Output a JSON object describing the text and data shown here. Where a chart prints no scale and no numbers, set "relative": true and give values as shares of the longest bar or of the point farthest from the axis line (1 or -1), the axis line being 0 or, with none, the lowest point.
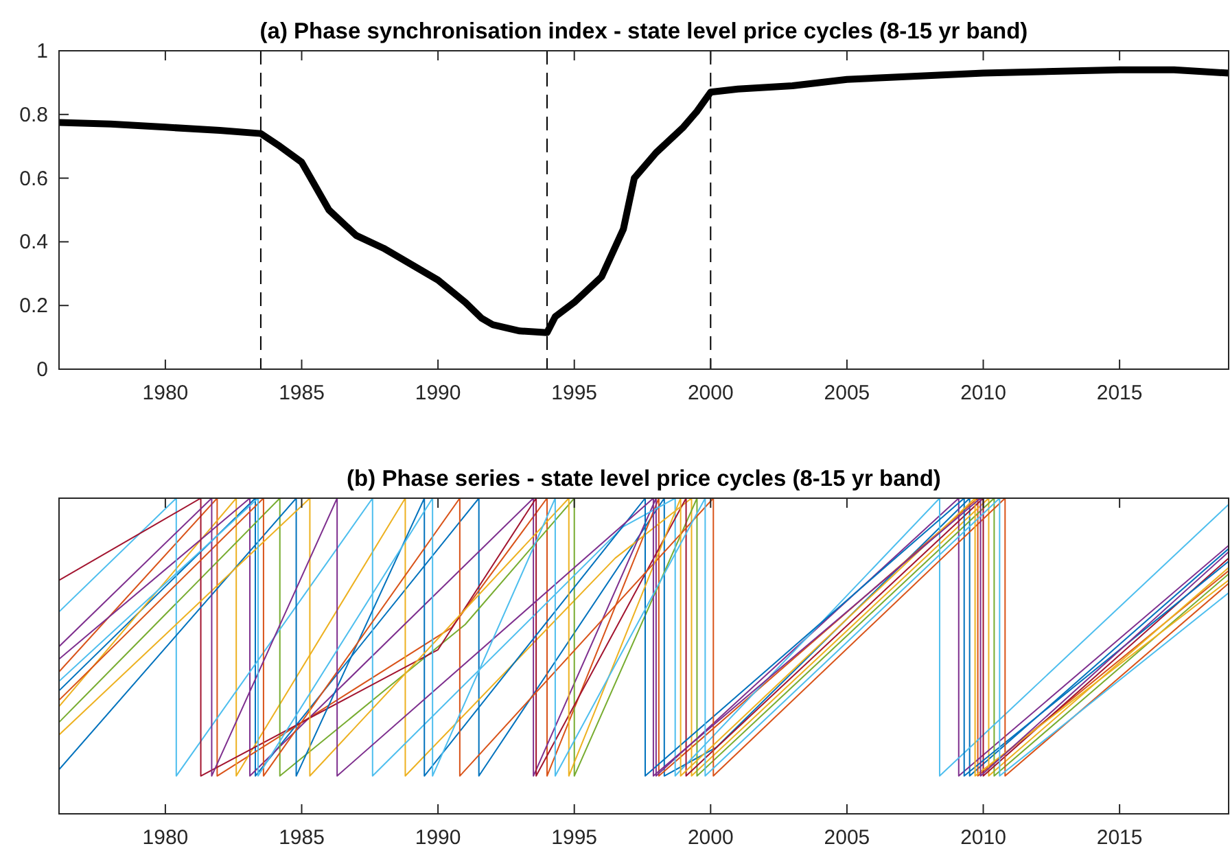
{
  "chart_data": [
    {
      "type": "line",
      "title": "(a) Phase synchronisation index - state level price cycles (8-15 yr band)",
      "xlim": [
        1976.1,
        2019
      ],
      "xticks": [
        1980,
        1985,
        1990,
        1995,
        2000,
        2005,
        2010,
        2015
      ],
      "ylim": [
        0,
        1
      ],
      "yticks": [
        0,
        0.2,
        0.4,
        0.6,
        0.8,
        1
      ],
      "grid": false,
      "ref_lines": [
        {
          "axis": "x",
          "value": 1983.5,
          "line_style": "dashed",
          "color": "#000000"
        },
        {
          "axis": "x",
          "value": 1994,
          "line_style": "dashed",
          "color": "#000000"
        },
        {
          "axis": "x",
          "value": 2000,
          "line_style": "dashed",
          "color": "#000000"
        }
      ],
      "x": [
        1976.1,
        1978,
        1980,
        1982,
        1983.5,
        1984.2,
        1985,
        1986,
        1987,
        1988,
        1989,
        1990,
        1991,
        1991.6,
        1992,
        1993,
        1994,
        1994.3,
        1995,
        1996,
        1996.8,
        1997.2,
        1998,
        1999,
        1999.5,
        2000,
        2001,
        2003,
        2005,
        2010,
        2015,
        2017,
        2019
      ],
      "series": [
        {
          "color": "#000000",
          "values": [
            0.775,
            0.77,
            0.76,
            0.75,
            0.74,
            0.7,
            0.65,
            0.5,
            0.42,
            0.38,
            0.33,
            0.28,
            0.21,
            0.16,
            0.14,
            0.12,
            0.115,
            0.165,
            0.21,
            0.29,
            0.44,
            0.6,
            0.68,
            0.76,
            0.81,
            0.87,
            0.88,
            0.89,
            0.91,
            0.93,
            0.94,
            0.94,
            0.93
          ]
        }
      ]
    },
    {
      "type": "line",
      "title": "(b) Phase series - state level price cycles (8-15 yr band)",
      "xlim": [
        1976.1,
        2019
      ],
      "xticks": [
        1980,
        1985,
        1990,
        1995,
        2000,
        2005,
        2010,
        2015
      ],
      "relative": true,
      "tick_labels": "x",
      "grid": false,
      "series": [
        {
          "color": "#0072bd",
          "x": [
            1976.1,
            1983.3,
            1983.3,
            1991.5,
            1991.5,
            1998.3,
            1998.3,
            2000.2,
            2009.5,
            2009.5,
            2019
          ],
          "values": [
            0.39,
            1,
            0.12,
            1,
            0.12,
            1,
            0.12,
            0.21,
            1,
            0.12,
            0.84
          ]
        },
        {
          "color": "#d95319",
          "x": [
            1976.1,
            1981.9,
            1981.9,
            1990.5,
            1994,
            1994,
            1998.1,
            1998.1,
            2009.8,
            2009.8,
            2019
          ],
          "values": [
            0.45,
            1,
            0.12,
            0.59,
            1,
            0.12,
            1,
            0.12,
            1,
            0.12,
            0.77
          ]
        },
        {
          "color": "#edb120",
          "x": [
            1976.1,
            1982.6,
            1982.6,
            1988.8,
            1988.8,
            1996.5,
            1999.3,
            1999.3,
            2010.2,
            2010.2,
            2019
          ],
          "values": [
            0.34,
            1,
            0.12,
            1,
            0.12,
            0.81,
            1,
            0.12,
            1,
            0.12,
            0.78
          ]
        },
        {
          "color": "#7e2f8e",
          "x": [
            1976.1,
            1983.1,
            1983.1,
            1993.5,
            1993.5,
            1998,
            1998,
            2009.1,
            2009.1,
            2019
          ],
          "values": [
            0.49,
            1,
            0.12,
            1,
            0.12,
            1,
            0.12,
            1,
            0.12,
            0.85
          ]
        },
        {
          "color": "#77ac30",
          "x": [
            1976.1,
            1984.2,
            1984.2,
            1991,
            1995,
            1995,
            1999.5,
            1999.5,
            2010.4,
            2010.4,
            2019
          ],
          "values": [
            0.29,
            1,
            0.12,
            0.6,
            1,
            0.12,
            1,
            0.12,
            1,
            0.12,
            0.76
          ]
        },
        {
          "color": "#4dbeee",
          "x": [
            1976.1,
            1980.4,
            1980.4,
            1987.6,
            1987.6,
            1996.8,
            1998.7,
            1998.7,
            2008.4,
            2008.4,
            2019
          ],
          "values": [
            0.64,
            1,
            0.12,
            1,
            0.12,
            0.91,
            1,
            0.12,
            1,
            0.12,
            0.98
          ]
        },
        {
          "color": "#a2142f",
          "x": [
            1976.1,
            1981.3,
            1981.3,
            1990,
            1993.6,
            1993.6,
            1999.1,
            1999.1,
            2010,
            2010,
            2019
          ],
          "values": [
            0.74,
            1,
            0.12,
            0.52,
            1,
            0.12,
            1,
            0.12,
            1,
            0.12,
            0.81
          ]
        },
        {
          "color": "#0072bd",
          "x": [
            1976.1,
            1984.8,
            1984.8,
            1989.5,
            1989.5,
            1997.6,
            1997.6,
            2009.3,
            2009.3,
            2019
          ],
          "values": [
            0.14,
            1,
            0.12,
            1,
            0.12,
            1,
            0.12,
            1,
            0.12,
            0.8
          ]
        },
        {
          "color": "#d95319",
          "x": [
            1976.1,
            1983.6,
            1983.6,
            1990.8,
            1990.8,
            2000.1,
            2000.1,
            2010.8,
            2010.8,
            2019
          ],
          "values": [
            0.36,
            1,
            0.12,
            1,
            0.12,
            1,
            0.12,
            1,
            0.12,
            0.73
          ]
        },
        {
          "color": "#edb120",
          "x": [
            1976.1,
            1985.3,
            1985.3,
            1994.8,
            1994.8,
            1998.9,
            1998.9,
            2009.7,
            2009.7,
            2019
          ],
          "values": [
            0.25,
            1,
            0.12,
            1,
            0.12,
            1,
            0.12,
            1,
            0.12,
            0.74
          ]
        },
        {
          "color": "#7e2f8e",
          "x": [
            1976.1,
            1981.7,
            1981.7,
            1986.3,
            1986.3,
            1997.9,
            1997.9,
            2009.9,
            2009.9,
            2019
          ],
          "values": [
            0.53,
            1,
            0.12,
            1,
            0.12,
            1,
            0.12,
            1,
            0.12,
            0.83
          ]
        },
        {
          "color": "#4dbeee",
          "x": [
            1976.1,
            1983.4,
            1983.4,
            1989.8,
            1989.8,
            1994.3,
            1994.3,
            1999.8,
            1999.8,
            2010.6,
            2010.6,
            2019
          ],
          "values": [
            0.42,
            1,
            0.12,
            1,
            0.12,
            1,
            0.12,
            1,
            0.12,
            1,
            0.12,
            0.7
          ]
        }
      ]
    }
  ]
}
